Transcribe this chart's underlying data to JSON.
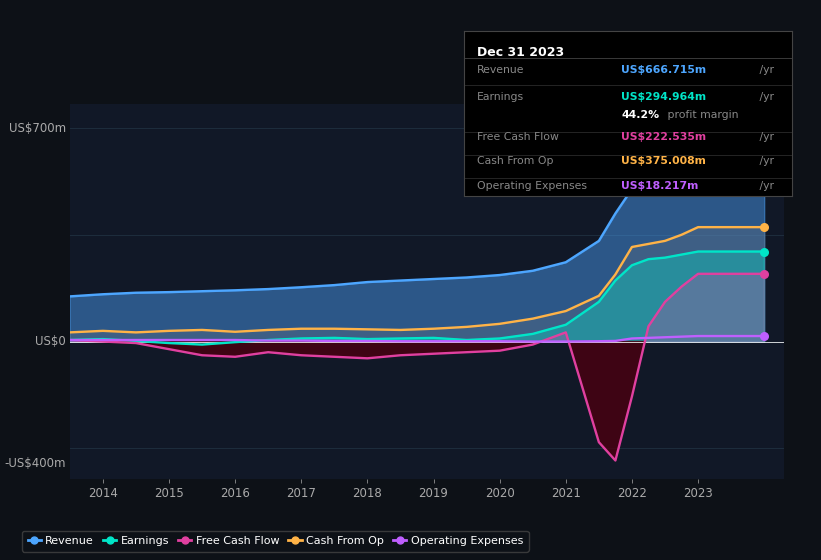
{
  "background_color": "#0d1117",
  "plot_bg_color": "#111827",
  "ylabel_top": "US$700m",
  "ylabel_bottom": "-US$400m",
  "y_zero_label": "US$0",
  "years": [
    2013.5,
    2014.0,
    2014.5,
    2015.0,
    2015.5,
    2016.0,
    2016.5,
    2017.0,
    2017.5,
    2018.0,
    2018.5,
    2019.0,
    2019.5,
    2020.0,
    2020.5,
    2021.0,
    2021.5,
    2021.75,
    2022.0,
    2022.25,
    2022.5,
    2022.75,
    2023.0,
    2023.5,
    2024.0
  ],
  "revenue": [
    148,
    155,
    160,
    162,
    165,
    168,
    172,
    178,
    185,
    195,
    200,
    205,
    210,
    218,
    232,
    260,
    330,
    420,
    500,
    570,
    620,
    650,
    667,
    667,
    667
  ],
  "earnings": [
    5,
    8,
    2,
    -5,
    -10,
    -2,
    5,
    10,
    12,
    8,
    10,
    12,
    5,
    10,
    25,
    55,
    130,
    200,
    250,
    270,
    275,
    285,
    295,
    295,
    295
  ],
  "free_cash_flow": [
    5,
    0,
    -5,
    -25,
    -45,
    -50,
    -35,
    -45,
    -50,
    -55,
    -45,
    -40,
    -35,
    -30,
    -10,
    30,
    -330,
    -390,
    -180,
    50,
    130,
    180,
    222,
    222,
    222
  ],
  "cash_from_op": [
    30,
    35,
    30,
    35,
    38,
    32,
    38,
    42,
    42,
    40,
    38,
    42,
    48,
    58,
    75,
    100,
    150,
    220,
    310,
    320,
    330,
    350,
    375,
    375,
    375
  ],
  "operating_expenses": [
    5,
    5,
    5,
    5,
    5,
    5,
    3,
    3,
    2,
    2,
    1,
    1,
    1,
    1,
    0,
    0,
    1,
    2,
    10,
    12,
    14,
    16,
    18,
    18,
    18
  ],
  "revenue_color": "#4da6ff",
  "earnings_color": "#00e5c8",
  "free_cash_flow_color": "#e040a0",
  "cash_from_op_color": "#ffb347",
  "operating_expenses_color": "#bf5fff",
  "xlim": [
    2013.5,
    2024.3
  ],
  "ylim": [
    -450,
    780
  ],
  "xticks": [
    2014,
    2015,
    2016,
    2017,
    2018,
    2019,
    2020,
    2021,
    2022,
    2023
  ],
  "gridline_color": "#1e2d3d",
  "gridline_y": [
    700,
    350,
    0,
    -350
  ],
  "zero_line_color": "#ffffff",
  "legend_entries": [
    "Revenue",
    "Earnings",
    "Free Cash Flow",
    "Cash From Op",
    "Operating Expenses"
  ],
  "info_revenue_val": "US$666.715m",
  "info_earnings_val": "US$294.964m",
  "info_margin": "44.2%",
  "info_fcf_val": "US$222.535m",
  "info_cashop_val": "US$375.008m",
  "info_opex_val": "US$18.217m"
}
